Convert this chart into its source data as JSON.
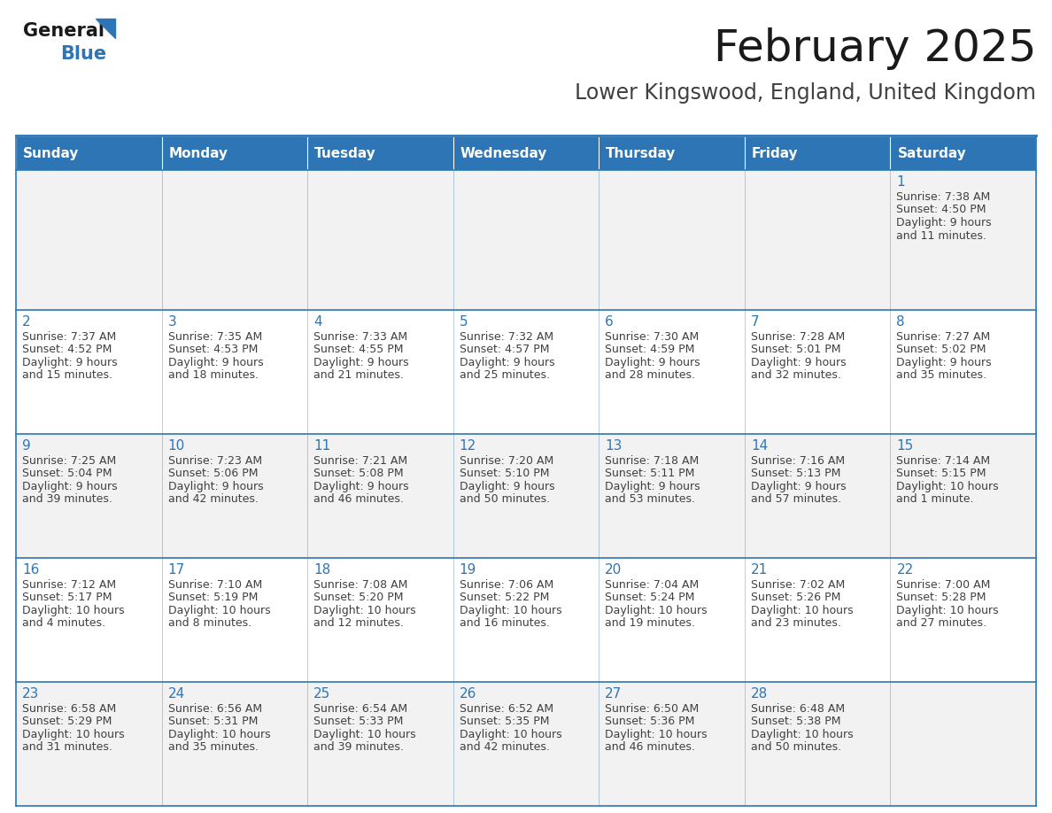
{
  "title": "February 2025",
  "subtitle": "Lower Kingswood, England, United Kingdom",
  "days_of_week": [
    "Sunday",
    "Monday",
    "Tuesday",
    "Wednesday",
    "Thursday",
    "Friday",
    "Saturday"
  ],
  "header_bg": "#2E75B6",
  "header_text": "#FFFFFF",
  "cell_bg_light": "#F2F2F2",
  "cell_bg_white": "#FFFFFF",
  "border_color": "#2E75B6",
  "day_num_color": "#2E75B6",
  "cell_text_color": "#404040",
  "title_color": "#1a1a1a",
  "subtitle_color": "#404040",
  "logo_general_color": "#1a1a1a",
  "logo_blue_color": "#2E75B6",
  "calendar": [
    [
      null,
      null,
      null,
      null,
      null,
      null,
      1
    ],
    [
      2,
      3,
      4,
      5,
      6,
      7,
      8
    ],
    [
      9,
      10,
      11,
      12,
      13,
      14,
      15
    ],
    [
      16,
      17,
      18,
      19,
      20,
      21,
      22
    ],
    [
      23,
      24,
      25,
      26,
      27,
      28,
      null
    ]
  ],
  "sunrise": {
    "1": "7:38 AM",
    "2": "7:37 AM",
    "3": "7:35 AM",
    "4": "7:33 AM",
    "5": "7:32 AM",
    "6": "7:30 AM",
    "7": "7:28 AM",
    "8": "7:27 AM",
    "9": "7:25 AM",
    "10": "7:23 AM",
    "11": "7:21 AM",
    "12": "7:20 AM",
    "13": "7:18 AM",
    "14": "7:16 AM",
    "15": "7:14 AM",
    "16": "7:12 AM",
    "17": "7:10 AM",
    "18": "7:08 AM",
    "19": "7:06 AM",
    "20": "7:04 AM",
    "21": "7:02 AM",
    "22": "7:00 AM",
    "23": "6:58 AM",
    "24": "6:56 AM",
    "25": "6:54 AM",
    "26": "6:52 AM",
    "27": "6:50 AM",
    "28": "6:48 AM"
  },
  "sunset": {
    "1": "4:50 PM",
    "2": "4:52 PM",
    "3": "4:53 PM",
    "4": "4:55 PM",
    "5": "4:57 PM",
    "6": "4:59 PM",
    "7": "5:01 PM",
    "8": "5:02 PM",
    "9": "5:04 PM",
    "10": "5:06 PM",
    "11": "5:08 PM",
    "12": "5:10 PM",
    "13": "5:11 PM",
    "14": "5:13 PM",
    "15": "5:15 PM",
    "16": "5:17 PM",
    "17": "5:19 PM",
    "18": "5:20 PM",
    "19": "5:22 PM",
    "20": "5:24 PM",
    "21": "5:26 PM",
    "22": "5:28 PM",
    "23": "5:29 PM",
    "24": "5:31 PM",
    "25": "5:33 PM",
    "26": "5:35 PM",
    "27": "5:36 PM",
    "28": "5:38 PM"
  },
  "daylight": {
    "1": [
      "9 hours",
      "and 11 minutes."
    ],
    "2": [
      "9 hours",
      "and 15 minutes."
    ],
    "3": [
      "9 hours",
      "and 18 minutes."
    ],
    "4": [
      "9 hours",
      "and 21 minutes."
    ],
    "5": [
      "9 hours",
      "and 25 minutes."
    ],
    "6": [
      "9 hours",
      "and 28 minutes."
    ],
    "7": [
      "9 hours",
      "and 32 minutes."
    ],
    "8": [
      "9 hours",
      "and 35 minutes."
    ],
    "9": [
      "9 hours",
      "and 39 minutes."
    ],
    "10": [
      "9 hours",
      "and 42 minutes."
    ],
    "11": [
      "9 hours",
      "and 46 minutes."
    ],
    "12": [
      "9 hours",
      "and 50 minutes."
    ],
    "13": [
      "9 hours",
      "and 53 minutes."
    ],
    "14": [
      "9 hours",
      "and 57 minutes."
    ],
    "15": [
      "10 hours",
      "and 1 minute."
    ],
    "16": [
      "10 hours",
      "and 4 minutes."
    ],
    "17": [
      "10 hours",
      "and 8 minutes."
    ],
    "18": [
      "10 hours",
      "and 12 minutes."
    ],
    "19": [
      "10 hours",
      "and 16 minutes."
    ],
    "20": [
      "10 hours",
      "and 19 minutes."
    ],
    "21": [
      "10 hours",
      "and 23 minutes."
    ],
    "22": [
      "10 hours",
      "and 27 minutes."
    ],
    "23": [
      "10 hours",
      "and 31 minutes."
    ],
    "24": [
      "10 hours",
      "and 35 minutes."
    ],
    "25": [
      "10 hours",
      "and 39 minutes."
    ],
    "26": [
      "10 hours",
      "and 42 minutes."
    ],
    "27": [
      "10 hours",
      "and 46 minutes."
    ],
    "28": [
      "10 hours",
      "and 50 minutes."
    ]
  }
}
